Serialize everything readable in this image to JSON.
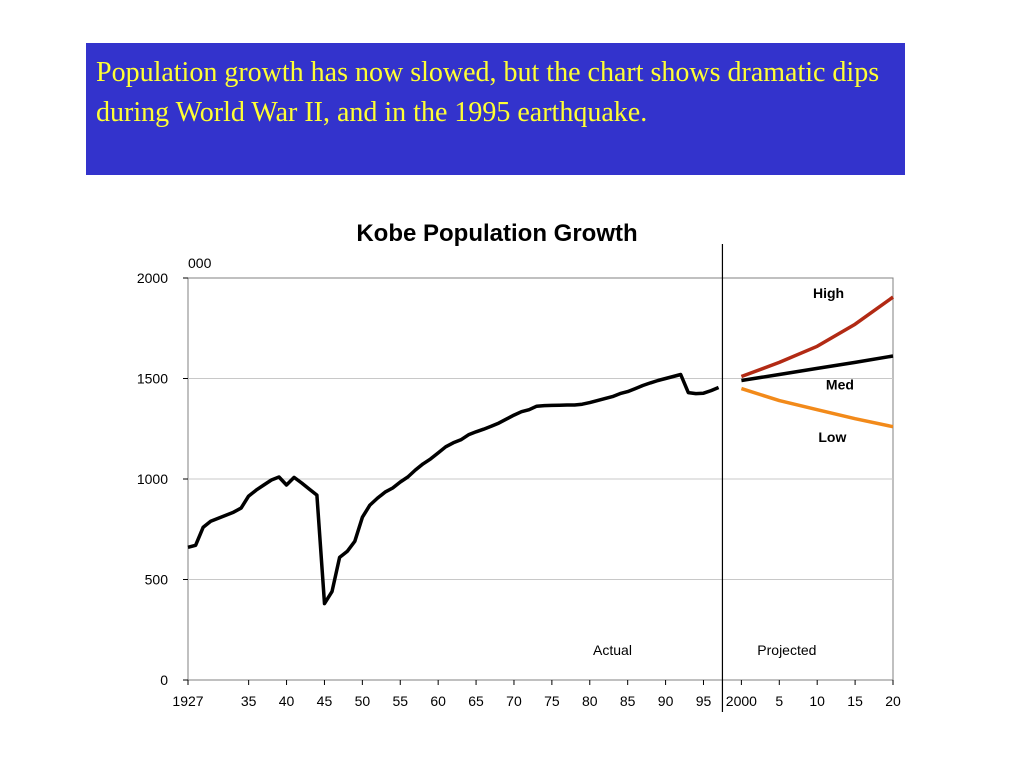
{
  "banner": {
    "text": "Population growth has now slowed, but the chart shows dramatic dips during World War II, and in the 1995 earthquake.",
    "background": "#3333cc",
    "text_color": "#ffff33"
  },
  "chart_data": {
    "type": "line",
    "title": "Kobe Population Growth",
    "ylabel": "000",
    "xlabel": "",
    "ylim": [
      0,
      2000
    ],
    "xlim": [
      1927,
      2020
    ],
    "y_ticks": [
      0,
      500,
      1000,
      1500,
      2000
    ],
    "x_ticks": [
      {
        "value": 1927,
        "label": "1927"
      },
      {
        "value": 1935,
        "label": "35"
      },
      {
        "value": 1940,
        "label": "40"
      },
      {
        "value": 1945,
        "label": "45"
      },
      {
        "value": 1950,
        "label": "50"
      },
      {
        "value": 1955,
        "label": "55"
      },
      {
        "value": 1960,
        "label": "60"
      },
      {
        "value": 1965,
        "label": "65"
      },
      {
        "value": 1970,
        "label": "70"
      },
      {
        "value": 1975,
        "label": "75"
      },
      {
        "value": 1980,
        "label": "80"
      },
      {
        "value": 1985,
        "label": "85"
      },
      {
        "value": 1990,
        "label": "90"
      },
      {
        "value": 1995,
        "label": "95"
      },
      {
        "value": 2000,
        "label": "2000"
      },
      {
        "value": 2005,
        "label": "5"
      },
      {
        "value": 2010,
        "label": "10"
      },
      {
        "value": 2015,
        "label": "15"
      },
      {
        "value": 2020,
        "label": "20"
      }
    ],
    "grid": "horizontal",
    "divider_year": 1997.5,
    "annotations": [
      {
        "text": "Actual",
        "x": 1983,
        "y": 125
      },
      {
        "text": "Projected",
        "x": 2006,
        "y": 125
      }
    ],
    "series": [
      {
        "name": "Actual",
        "color": "#000000",
        "x": [
          1927,
          1928,
          1929,
          1930,
          1931,
          1932,
          1933,
          1934,
          1935,
          1936,
          1937,
          1938,
          1939,
          1940,
          1941,
          1942,
          1943,
          1944,
          1945,
          1946,
          1947,
          1948,
          1949,
          1950,
          1951,
          1952,
          1953,
          1954,
          1955,
          1956,
          1957,
          1958,
          1959,
          1960,
          1961,
          1962,
          1963,
          1964,
          1965,
          1966,
          1967,
          1968,
          1969,
          1970,
          1971,
          1972,
          1973,
          1974,
          1975,
          1976,
          1977,
          1978,
          1979,
          1980,
          1981,
          1982,
          1983,
          1984,
          1985,
          1986,
          1987,
          1988,
          1989,
          1990,
          1991,
          1992,
          1993,
          1994,
          1995,
          1996,
          1997
        ],
        "y": [
          660,
          670,
          760,
          790,
          805,
          820,
          835,
          855,
          915,
          945,
          970,
          995,
          1010,
          970,
          1008,
          980,
          950,
          920,
          380,
          440,
          610,
          640,
          690,
          810,
          870,
          905,
          935,
          955,
          985,
          1010,
          1045,
          1075,
          1100,
          1130,
          1160,
          1180,
          1195,
          1220,
          1235,
          1248,
          1262,
          1278,
          1298,
          1318,
          1335,
          1345,
          1362,
          1365,
          1366,
          1367,
          1368,
          1368,
          1372,
          1380,
          1390,
          1400,
          1410,
          1425,
          1435,
          1450,
          1465,
          1478,
          1490,
          1500,
          1510,
          1520,
          1430,
          1425,
          1427,
          1440,
          1455
        ]
      },
      {
        "name": "High",
        "color": "#b22a14",
        "x": [
          2000,
          2005,
          2010,
          2015,
          2020
        ],
        "y": [
          1510,
          1580,
          1660,
          1770,
          1905
        ]
      },
      {
        "name": "Med",
        "color": "#000000",
        "x": [
          2000,
          2005,
          2010,
          2015,
          2020
        ],
        "y": [
          1490,
          1520,
          1550,
          1580,
          1612
        ]
      },
      {
        "name": "Low",
        "color": "#f28a1a",
        "x": [
          2000,
          2005,
          2010,
          2015,
          2020
        ],
        "y": [
          1450,
          1390,
          1345,
          1300,
          1260
        ]
      }
    ],
    "series_labels": [
      {
        "name": "High",
        "x": 2011.5,
        "y": 1900
      },
      {
        "name": "Med",
        "x": 2013,
        "y": 1445
      },
      {
        "name": "Low",
        "x": 2012,
        "y": 1185
      }
    ]
  }
}
